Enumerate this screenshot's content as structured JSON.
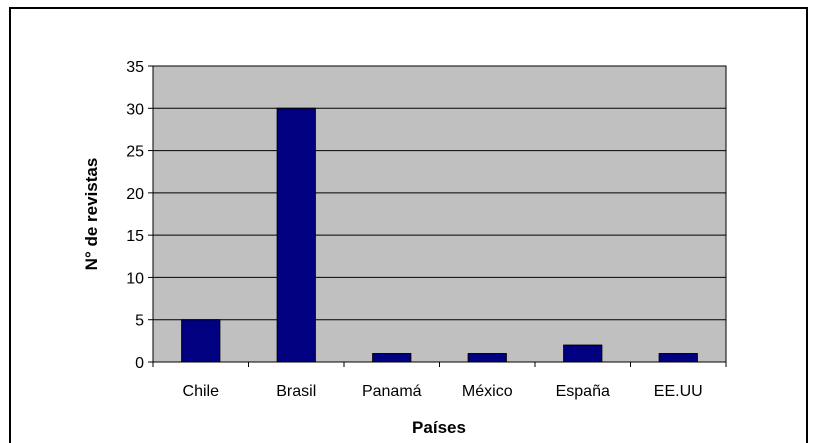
{
  "chart_data": {
    "type": "bar",
    "title": "",
    "xlabel": "Países",
    "ylabel": "N° de revistas",
    "categories": [
      "Chile",
      "Brasil",
      "Panamá",
      "México",
      "España",
      "EE.UU"
    ],
    "values": [
      5,
      30,
      1,
      1,
      2,
      1
    ],
    "ylim": [
      0,
      35
    ],
    "yticks": [
      "0",
      "5",
      "10",
      "15",
      "20",
      "25",
      "30",
      "35"
    ],
    "grid": true,
    "legend": "none",
    "colors": {
      "bar": "#000080",
      "plot_background": "#c0c0c0",
      "gridline": "#000000"
    }
  }
}
